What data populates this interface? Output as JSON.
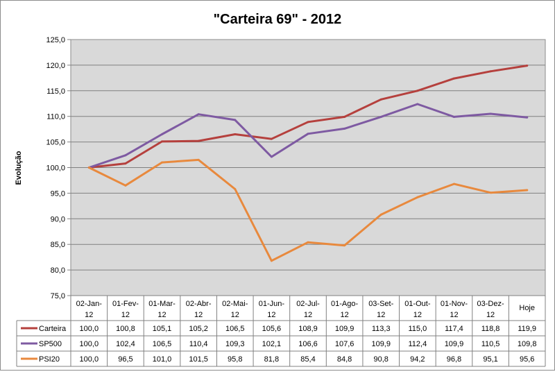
{
  "chart_data": {
    "type": "line",
    "title": "\"Carteira 69\" - 2012",
    "ylabel": "Evolução",
    "xlabel": "",
    "ylim": [
      75,
      125
    ],
    "ytick_step": 5,
    "ytick_labels": [
      "75,0",
      "80,0",
      "85,0",
      "90,0",
      "95,0",
      "100,0",
      "105,0",
      "110,0",
      "115,0",
      "120,0",
      "125,0"
    ],
    "categories": [
      [
        "02-Jan-",
        "12"
      ],
      [
        "01-Fev-",
        "12"
      ],
      [
        "01-Mar-",
        "12"
      ],
      [
        "02-Abr-",
        "12"
      ],
      [
        "02-Mai-",
        "12"
      ],
      [
        "01-Jun-",
        "12"
      ],
      [
        "02-Jul-",
        "12"
      ],
      [
        "01-Ago-",
        "12"
      ],
      [
        "03-Set-",
        "12"
      ],
      [
        "01-Out-",
        "12"
      ],
      [
        "01-Nov-",
        "12"
      ],
      [
        "03-Dez-",
        "12"
      ],
      [
        "Hoje"
      ]
    ],
    "grid": true,
    "plot_background": "#d9d9d9",
    "legend": "data-table-below",
    "series": [
      {
        "name": "Carteira",
        "color": "#b5403d",
        "values": [
          100.0,
          100.8,
          105.1,
          105.2,
          106.5,
          105.6,
          108.9,
          109.9,
          113.3,
          115.0,
          117.4,
          118.8,
          119.9
        ],
        "labels": [
          "100,0",
          "100,8",
          "105,1",
          "105,2",
          "106,5",
          "105,6",
          "108,9",
          "109,9",
          "113,3",
          "115,0",
          "117,4",
          "118,8",
          "119,9"
        ]
      },
      {
        "name": "SP500",
        "color": "#7e5aa2",
        "values": [
          100.0,
          102.4,
          106.5,
          110.4,
          109.3,
          102.1,
          106.6,
          107.6,
          109.9,
          112.4,
          109.9,
          110.5,
          109.8
        ],
        "labels": [
          "100,0",
          "102,4",
          "106,5",
          "110,4",
          "109,3",
          "102,1",
          "106,6",
          "107,6",
          "109,9",
          "112,4",
          "109,9",
          "110,5",
          "109,8"
        ]
      },
      {
        "name": "PSI20",
        "color": "#e8893d",
        "values": [
          100.0,
          96.5,
          101.0,
          101.5,
          95.8,
          81.8,
          85.4,
          84.8,
          90.8,
          94.2,
          96.8,
          95.1,
          95.6
        ],
        "labels": [
          "100,0",
          "96,5",
          "101,0",
          "101,5",
          "95,8",
          "81,8",
          "85,4",
          "84,8",
          "90,8",
          "94,2",
          "96,8",
          "95,1",
          "95,6"
        ]
      }
    ]
  }
}
